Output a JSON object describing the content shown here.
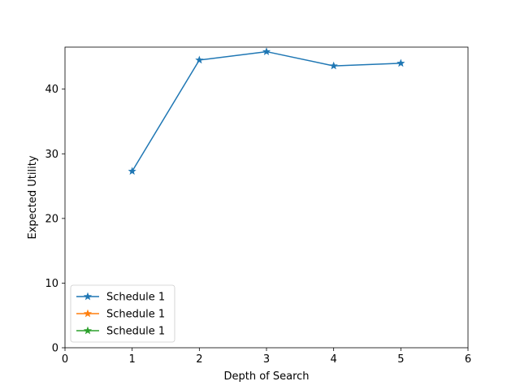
{
  "chart_data": {
    "type": "line",
    "title": "",
    "xlabel": "Depth of Search",
    "ylabel": "Expected Utility",
    "xlim": [
      0,
      6
    ],
    "ylim": [
      0,
      46.5
    ],
    "xticks": [
      0,
      1,
      2,
      3,
      4,
      5,
      6
    ],
    "yticks": [
      0,
      10,
      20,
      30,
      40
    ],
    "grid": false,
    "legend_position": "lower-left",
    "series": [
      {
        "name": "Schedule 1",
        "color": "#1f77b4",
        "marker": "star",
        "x": [
          1,
          2,
          3,
          4,
          5
        ],
        "y": [
          27.3,
          44.5,
          45.8,
          43.6,
          44.0
        ]
      },
      {
        "name": "Schedule 1",
        "color": "#ff7f0e",
        "marker": "star",
        "x": [],
        "y": []
      },
      {
        "name": "Schedule 1",
        "color": "#2ca02c",
        "marker": "star",
        "x": [],
        "y": []
      }
    ]
  }
}
